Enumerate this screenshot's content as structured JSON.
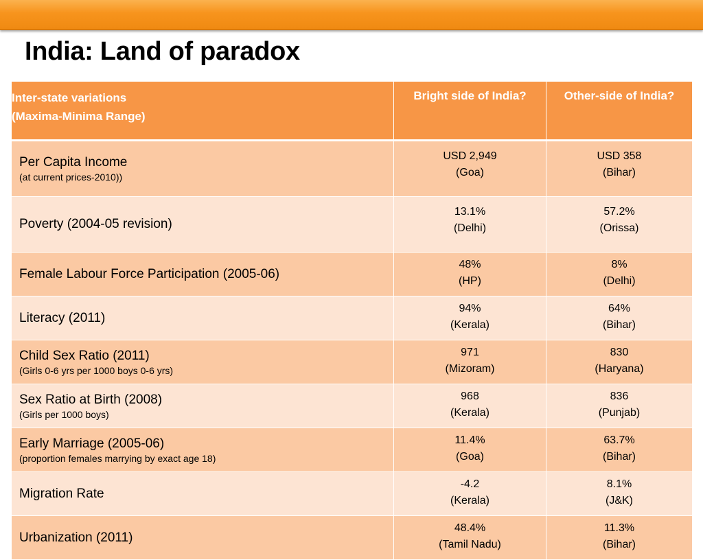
{
  "slide": {
    "title": "India: Land of paradox"
  },
  "table": {
    "headers": {
      "indicator_line1": "Inter-state variations",
      "indicator_line2": "(Maxima-Minima Range)",
      "bright": "Bright side of India?",
      "other": "Other-side of India?"
    },
    "rows": [
      {
        "label": "Per Capita Income",
        "note": "(at current prices-2010))",
        "bright_value": "USD 2,949",
        "bright_state": "(Goa)",
        "other_value": "USD 358",
        "other_state": "(Bihar)"
      },
      {
        "label": "Poverty (2004-05 revision)",
        "note": "",
        "bright_value": "13.1%",
        "bright_state": "(Delhi)",
        "other_value": "57.2%",
        "other_state": "(Orissa)"
      },
      {
        "label": "Female Labour Force Participation (2005-06)",
        "note": "",
        "bright_value": "48%",
        "bright_state": "(HP)",
        "other_value": "8%",
        "other_state": "(Delhi)"
      },
      {
        "label": "Literacy (2011)",
        "note": "",
        "bright_value": "94%",
        "bright_state": "(Kerala)",
        "other_value": "64%",
        "other_state": "(Bihar)"
      },
      {
        "label": "Child Sex Ratio (2011)",
        "note": "(Girls 0-6 yrs per 1000 boys 0-6 yrs)",
        "bright_value": "971",
        "bright_state": "(Mizoram)",
        "other_value": "830",
        "other_state": "(Haryana)"
      },
      {
        "label": "Sex Ratio at Birth (2008)",
        "note": "(Girls per 1000 boys)",
        "bright_value": "968",
        "bright_state": "(Kerala)",
        "other_value": "836",
        "other_state": "(Punjab)"
      },
      {
        "label": "Early Marriage (2005-06)",
        "note": "(proportion females marrying by exact age 18)",
        "bright_value": "11.4%",
        "bright_state": "(Goa)",
        "other_value": "63.7%",
        "other_state": "(Bihar)"
      },
      {
        "label": "Migration Rate",
        "note": "",
        "bright_value": "-4.2",
        "bright_state": "(Kerala)",
        "other_value": "8.1%",
        "other_state": "(J&K)"
      },
      {
        "label": "Urbanization (2011)",
        "note": "",
        "bright_value": "48.4%",
        "bright_state": "(Tamil Nadu)",
        "other_value": "11.3%",
        "other_state": "(Bihar)"
      }
    ]
  },
  "colors": {
    "accent_bar": "#f7941d",
    "header_fill": "#f79646",
    "row_dark": "#fbc9a3",
    "row_light": "#fde4d3"
  }
}
